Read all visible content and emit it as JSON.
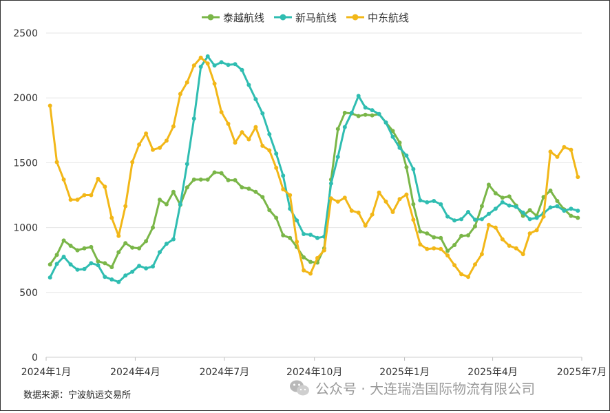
{
  "chart_data": {
    "type": "line",
    "title": "",
    "xlabel": "",
    "ylabel": "",
    "ylim": [
      0,
      2500
    ],
    "y_ticks": [
      "0",
      "500",
      "1000",
      "1500",
      "2000",
      "2500"
    ],
    "x_tick_labels": [
      "2024年1月",
      "2024年4月",
      "2024年7月",
      "2024年10月",
      "2025年1月",
      "2025年4月",
      "2025年7月"
    ],
    "grid": true,
    "legend_position": "top-center",
    "x_start": "2024-01",
    "x_end": "2025-07",
    "series": [
      {
        "name": "泰越航线",
        "color": "#7ab648",
        "x": [
          "2024-01-05",
          "2024-01-12",
          "2024-01-19",
          "2024-01-26",
          "2024-02-02",
          "2024-02-09",
          "2024-02-16",
          "2024-02-23",
          "2024-03-01",
          "2024-03-08",
          "2024-03-15",
          "2024-03-22",
          "2024-03-29",
          "2024-04-05",
          "2024-04-12",
          "2024-04-19",
          "2024-04-26",
          "2024-05-03",
          "2024-05-10",
          "2024-05-17",
          "2024-05-24",
          "2024-05-31",
          "2024-06-07",
          "2024-06-14",
          "2024-06-21",
          "2024-06-28",
          "2024-07-05",
          "2024-07-12",
          "2024-07-19",
          "2024-07-26",
          "2024-08-02",
          "2024-08-09",
          "2024-08-16",
          "2024-08-23",
          "2024-08-30",
          "2024-09-06",
          "2024-09-13",
          "2024-09-20",
          "2024-09-27",
          "2024-10-04",
          "2024-10-11",
          "2024-10-18",
          "2024-10-25",
          "2024-11-01",
          "2024-11-08",
          "2024-11-15",
          "2024-11-22",
          "2024-11-29",
          "2024-12-06",
          "2024-12-13",
          "2024-12-20",
          "2024-12-27",
          "2025-01-03",
          "2025-01-10",
          "2025-01-17",
          "2025-01-24",
          "2025-01-31",
          "2025-02-07",
          "2025-02-14",
          "2025-02-21",
          "2025-02-28",
          "2025-03-07",
          "2025-03-14",
          "2025-03-21",
          "2025-03-28",
          "2025-04-04",
          "2025-04-11",
          "2025-04-18",
          "2025-04-25",
          "2025-05-02",
          "2025-05-09",
          "2025-05-16",
          "2025-05-23",
          "2025-05-30",
          "2025-06-06",
          "2025-06-13",
          "2025-06-20",
          "2025-06-27"
        ],
        "values": [
          715,
          790,
          900,
          860,
          825,
          840,
          850,
          740,
          725,
          695,
          810,
          880,
          845,
          840,
          895,
          1000,
          1215,
          1180,
          1275,
          1175,
          1310,
          1370,
          1370,
          1370,
          1425,
          1420,
          1365,
          1365,
          1310,
          1300,
          1275,
          1235,
          1135,
          1075,
          940,
          920,
          850,
          770,
          735,
          730,
          840,
          1370,
          1760,
          1885,
          1880,
          1860,
          1870,
          1865,
          1875,
          1810,
          1745,
          1655,
          1465,
          1180,
          970,
          955,
          925,
          920,
          820,
          865,
          935,
          940,
          1010,
          1165,
          1330,
          1265,
          1230,
          1240,
          1170,
          1090,
          1135,
          1090,
          1235,
          1285,
          1205,
          1140,
          1090,
          1075
        ]
      },
      {
        "name": "新马航线",
        "color": "#2fbdb1",
        "x": [
          "2024-01-05",
          "2024-01-12",
          "2024-01-19",
          "2024-01-26",
          "2024-02-02",
          "2024-02-09",
          "2024-02-16",
          "2024-02-23",
          "2024-03-01",
          "2024-03-08",
          "2024-03-15",
          "2024-03-22",
          "2024-03-29",
          "2024-04-05",
          "2024-04-12",
          "2024-04-19",
          "2024-04-26",
          "2024-05-03",
          "2024-05-10",
          "2024-05-17",
          "2024-05-24",
          "2024-05-31",
          "2024-06-07",
          "2024-06-14",
          "2024-06-21",
          "2024-06-28",
          "2024-07-05",
          "2024-07-12",
          "2024-07-19",
          "2024-07-26",
          "2024-08-02",
          "2024-08-09",
          "2024-08-16",
          "2024-08-23",
          "2024-08-30",
          "2024-09-06",
          "2024-09-13",
          "2024-09-20",
          "2024-09-27",
          "2024-10-04",
          "2024-10-11",
          "2024-10-18",
          "2024-10-25",
          "2024-11-01",
          "2024-11-08",
          "2024-11-15",
          "2024-11-22",
          "2024-11-29",
          "2024-12-06",
          "2024-12-13",
          "2024-12-20",
          "2024-12-27",
          "2025-01-03",
          "2025-01-10",
          "2025-01-17",
          "2025-01-24",
          "2025-01-31",
          "2025-02-07",
          "2025-02-14",
          "2025-02-21",
          "2025-02-28",
          "2025-03-07",
          "2025-03-14",
          "2025-03-21",
          "2025-03-28",
          "2025-04-04",
          "2025-04-11",
          "2025-04-18",
          "2025-04-25",
          "2025-05-02",
          "2025-05-09",
          "2025-05-16",
          "2025-05-23",
          "2025-05-30",
          "2025-06-06",
          "2025-06-13",
          "2025-06-20",
          "2025-06-27"
        ],
        "values": [
          615,
          720,
          775,
          715,
          675,
          680,
          725,
          710,
          620,
          600,
          580,
          630,
          660,
          705,
          685,
          700,
          810,
          875,
          910,
          1180,
          1490,
          1840,
          2240,
          2320,
          2250,
          2275,
          2255,
          2260,
          2215,
          2100,
          1990,
          1880,
          1720,
          1570,
          1400,
          1145,
          1055,
          950,
          945,
          920,
          930,
          1340,
          1545,
          1775,
          1885,
          2015,
          1925,
          1905,
          1875,
          1810,
          1700,
          1615,
          1555,
          1450,
          1210,
          1195,
          1205,
          1180,
          1085,
          1055,
          1065,
          1120,
          1060,
          1065,
          1105,
          1145,
          1195,
          1170,
          1160,
          1115,
          1065,
          1075,
          1110,
          1155,
          1165,
          1130,
          1145,
          1130
        ]
      },
      {
        "name": "中东航线",
        "color": "#f2b718",
        "x": [
          "2024-01-05",
          "2024-01-12",
          "2024-01-19",
          "2024-01-26",
          "2024-02-02",
          "2024-02-09",
          "2024-02-16",
          "2024-02-23",
          "2024-03-01",
          "2024-03-08",
          "2024-03-15",
          "2024-03-22",
          "2024-03-29",
          "2024-04-05",
          "2024-04-12",
          "2024-04-19",
          "2024-04-26",
          "2024-05-03",
          "2024-05-10",
          "2024-05-17",
          "2024-05-24",
          "2024-05-31",
          "2024-06-07",
          "2024-06-14",
          "2024-06-21",
          "2024-06-28",
          "2024-07-05",
          "2024-07-12",
          "2024-07-19",
          "2024-07-26",
          "2024-08-02",
          "2024-08-09",
          "2024-08-16",
          "2024-08-23",
          "2024-08-30",
          "2024-09-06",
          "2024-09-13",
          "2024-09-20",
          "2024-09-27",
          "2024-10-04",
          "2024-10-11",
          "2024-10-18",
          "2024-10-25",
          "2024-11-01",
          "2024-11-08",
          "2024-11-15",
          "2024-11-22",
          "2024-11-29",
          "2024-12-06",
          "2024-12-13",
          "2024-12-20",
          "2024-12-27",
          "2025-01-03",
          "2025-01-10",
          "2025-01-17",
          "2025-01-24",
          "2025-01-31",
          "2025-02-07",
          "2025-02-14",
          "2025-02-21",
          "2025-02-28",
          "2025-03-07",
          "2025-03-14",
          "2025-03-21",
          "2025-03-28",
          "2025-04-04",
          "2025-04-11",
          "2025-04-18",
          "2025-04-25",
          "2025-05-02",
          "2025-05-09",
          "2025-05-16",
          "2025-05-23",
          "2025-05-30",
          "2025-06-06",
          "2025-06-13",
          "2025-06-20",
          "2025-06-27"
        ],
        "values": [
          1940,
          1505,
          1370,
          1215,
          1215,
          1250,
          1250,
          1375,
          1315,
          1075,
          935,
          1165,
          1505,
          1640,
          1725,
          1600,
          1615,
          1670,
          1780,
          2030,
          2120,
          2250,
          2310,
          2265,
          2110,
          1890,
          1800,
          1655,
          1735,
          1680,
          1775,
          1630,
          1595,
          1460,
          1295,
          1250,
          890,
          670,
          645,
          765,
          825,
          1225,
          1200,
          1230,
          1130,
          1115,
          1015,
          1100,
          1270,
          1200,
          1120,
          1220,
          1255,
          1060,
          870,
          835,
          840,
          835,
          785,
          710,
          640,
          620,
          715,
          795,
          1020,
          1000,
          910,
          860,
          840,
          795,
          955,
          980,
          1085,
          1585,
          1545,
          1620,
          1600,
          1390
        ]
      }
    ]
  },
  "source_note": "数据来源：宁波航运交易所",
  "watermark": {
    "icon": "wechat-icon",
    "text": "公众号 · 大连瑞浩国际物流有限公司"
  }
}
